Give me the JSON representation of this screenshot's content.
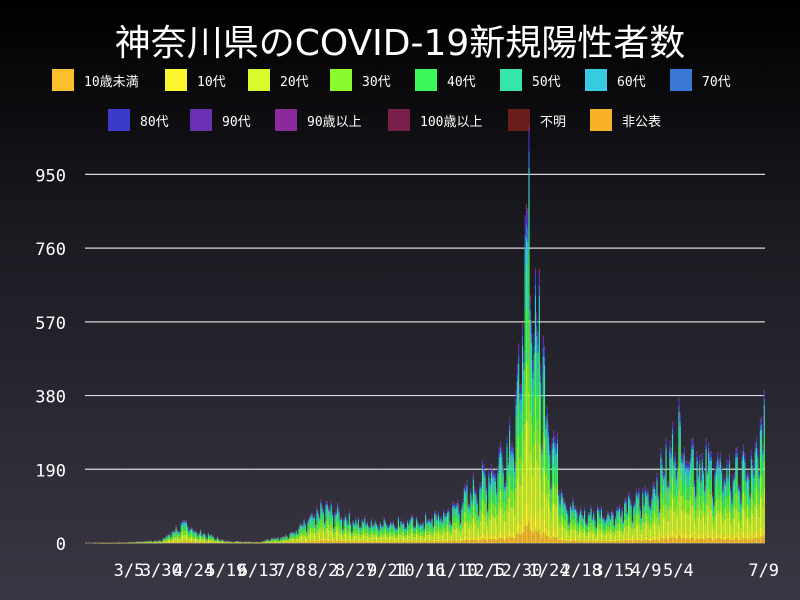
{
  "chart_data": {
    "type": "bar",
    "stacked": true,
    "title": "神奈川県のCOVID-19新規陽性者数",
    "xlabel": "",
    "ylabel": "",
    "ylim": [
      0,
      1000
    ],
    "yticks": [
      0,
      190,
      380,
      570,
      760,
      950
    ],
    "xtick_labels": [
      "3/5",
      "3/30",
      "4/24",
      "5/19",
      "6/13",
      "7/8",
      "8/2",
      "8/27",
      "9/21",
      "10/16",
      "11/10",
      "12/5",
      "12/30",
      "1/24",
      "2/18",
      "3/15",
      "4/9",
      "5/4",
      "7/9"
    ],
    "grid": "horizontal",
    "legend_position": "top",
    "legend": [
      {
        "label": "10歳未満",
        "color": "#fbbf2e"
      },
      {
        "label": "10代",
        "color": "#fbf52e"
      },
      {
        "label": "20代",
        "color": "#d8fb2e"
      },
      {
        "label": "30代",
        "color": "#8afb2e"
      },
      {
        "label": "40代",
        "color": "#3ef75a"
      },
      {
        "label": "50代",
        "color": "#36e6a8"
      },
      {
        "label": "60代",
        "color": "#36cbe0"
      },
      {
        "label": "70代",
        "color": "#3a78d8"
      },
      {
        "label": "80代",
        "color": "#3b3acb"
      },
      {
        "label": "90代",
        "color": "#6b2fb3"
      },
      {
        "label": "90歳以上",
        "color": "#8c2a9c"
      },
      {
        "label": "100歳以上",
        "color": "#7a1e4c"
      },
      {
        "label": "不明",
        "color": "#6a1e1a"
      },
      {
        "label": "非公表",
        "color": "#f9b12a"
      }
    ],
    "series_shares": [
      0.05,
      0.07,
      0.24,
      0.17,
      0.16,
      0.13,
      0.07,
      0.04,
      0.03,
      0.02,
      0.005,
      0.001,
      0.002,
      0.001
    ],
    "daily_totals_keypoints": [
      [
        "2020-01-31",
        0
      ],
      [
        "2020-03-05",
        2
      ],
      [
        "2020-03-30",
        8
      ],
      [
        "2020-04-10",
        40
      ],
      [
        "2020-04-20",
        55
      ],
      [
        "2020-04-24",
        35
      ],
      [
        "2020-05-19",
        5
      ],
      [
        "2020-06-13",
        3
      ],
      [
        "2020-07-08",
        25
      ],
      [
        "2020-07-25",
        70
      ],
      [
        "2020-08-02",
        100
      ],
      [
        "2020-08-15",
        80
      ],
      [
        "2020-08-27",
        60
      ],
      [
        "2020-09-21",
        60
      ],
      [
        "2020-10-16",
        60
      ],
      [
        "2020-11-10",
        90
      ],
      [
        "2020-11-25",
        150
      ],
      [
        "2020-12-05",
        180
      ],
      [
        "2020-12-20",
        260
      ],
      [
        "2020-12-30",
        380
      ],
      [
        "2021-01-08",
        900
      ],
      [
        "2021-01-12",
        700
      ],
      [
        "2021-01-24",
        350
      ],
      [
        "2021-02-05",
        120
      ],
      [
        "2021-02-18",
        80
      ],
      [
        "2021-03-15",
        90
      ],
      [
        "2021-04-09",
        130
      ],
      [
        "2021-04-25",
        230
      ],
      [
        "2021-05-04",
        320
      ],
      [
        "2021-05-20",
        230
      ],
      [
        "2021-06-10",
        200
      ],
      [
        "2021-07-01",
        210
      ],
      [
        "2021-07-09",
        350
      ]
    ]
  }
}
